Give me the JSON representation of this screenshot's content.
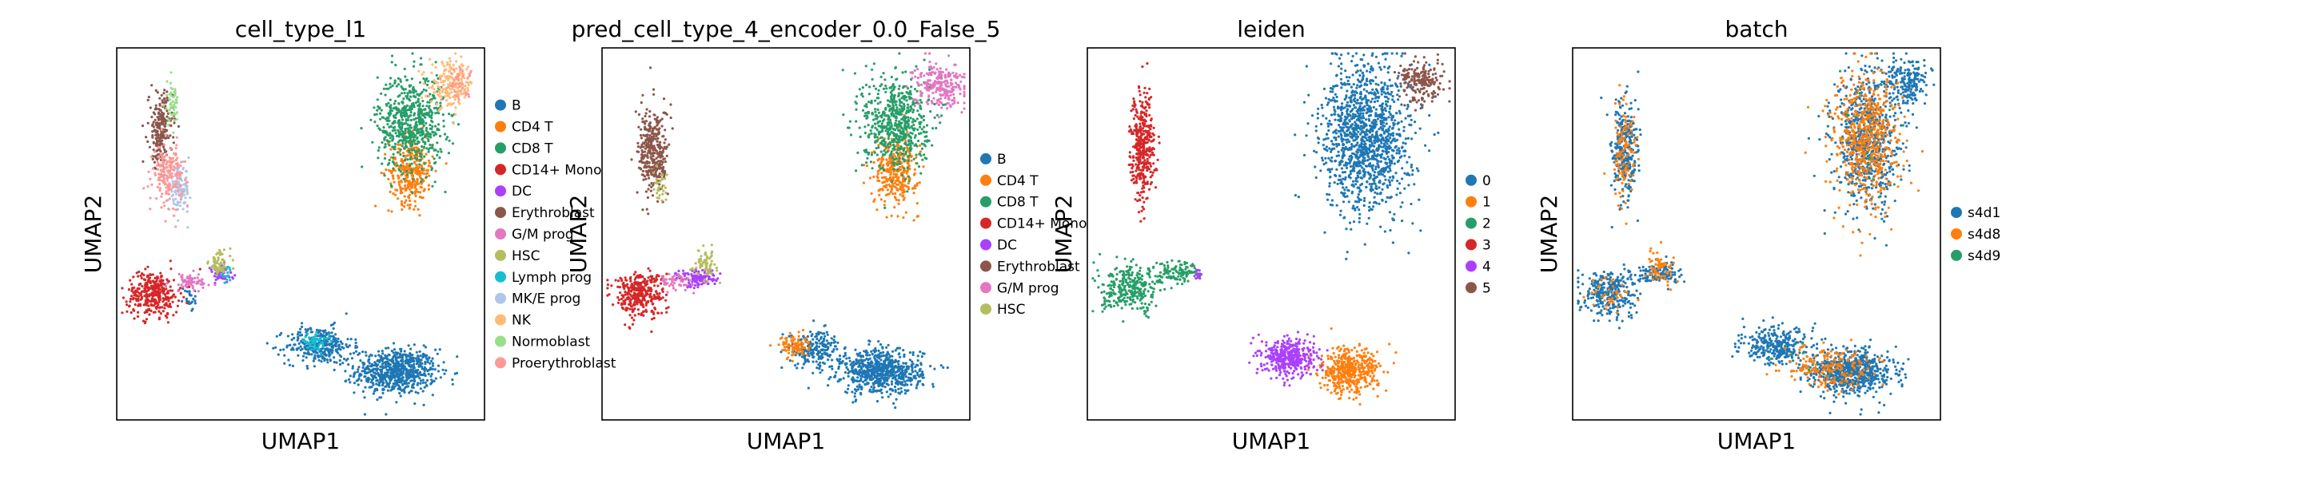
{
  "chart_data": [
    {
      "type": "scatter",
      "title": "cell_type_l1",
      "xlabel": "UMAP1",
      "ylabel": "UMAP2",
      "ticks": "none",
      "legend_position": "right",
      "categories": [
        "B",
        "CD4 T",
        "CD8 T",
        "CD14+ Mono",
        "DC",
        "Erythroblast",
        "G/M prog",
        "HSC",
        "Lymph prog",
        "MK/E prog",
        "NK",
        "Normoblast",
        "Proerythroblast"
      ],
      "colors": [
        "#1f77b4",
        "#ff7f0e",
        "#279e68",
        "#d62728",
        "#aa40fc",
        "#8c564b",
        "#e377c2",
        "#b5bd61",
        "#17becf",
        "#aec7e8",
        "#ffbb78",
        "#98df8a",
        "#ff9896"
      ],
      "clusters": [
        {
          "category": "B",
          "x": 0.76,
          "y": 0.13,
          "sx": 0.055,
          "sy": 0.03,
          "n": 700
        },
        {
          "category": "B",
          "x": 0.55,
          "y": 0.2,
          "sx": 0.045,
          "sy": 0.025,
          "n": 300
        },
        {
          "category": "B",
          "x": 0.2,
          "y": 0.33,
          "sx": 0.01,
          "sy": 0.02,
          "n": 25
        },
        {
          "category": "CD4 T",
          "x": 0.8,
          "y": 0.67,
          "sx": 0.03,
          "sy": 0.045,
          "n": 320
        },
        {
          "category": "CD8 T",
          "x": 0.8,
          "y": 0.8,
          "sx": 0.045,
          "sy": 0.065,
          "n": 650
        },
        {
          "category": "CD14+ Mono",
          "x": 0.1,
          "y": 0.34,
          "sx": 0.035,
          "sy": 0.03,
          "n": 340
        },
        {
          "category": "DC",
          "x": 0.28,
          "y": 0.39,
          "sx": 0.018,
          "sy": 0.012,
          "n": 60
        },
        {
          "category": "Erythroblast",
          "x": 0.12,
          "y": 0.78,
          "sx": 0.016,
          "sy": 0.05,
          "n": 220
        },
        {
          "category": "G/M prog",
          "x": 0.2,
          "y": 0.37,
          "sx": 0.03,
          "sy": 0.012,
          "n": 70
        },
        {
          "category": "HSC",
          "x": 0.28,
          "y": 0.42,
          "sx": 0.015,
          "sy": 0.018,
          "n": 70
        },
        {
          "category": "Lymph prog",
          "x": 0.54,
          "y": 0.21,
          "sx": 0.018,
          "sy": 0.01,
          "n": 60
        },
        {
          "category": "Lymph prog",
          "x": 0.3,
          "y": 0.39,
          "sx": 0.008,
          "sy": 0.008,
          "n": 15
        },
        {
          "category": "MK/E prog",
          "x": 0.17,
          "y": 0.62,
          "sx": 0.014,
          "sy": 0.03,
          "n": 120
        },
        {
          "category": "NK",
          "x": 0.91,
          "y": 0.9,
          "sx": 0.03,
          "sy": 0.03,
          "n": 200
        },
        {
          "category": "Normoblast",
          "x": 0.15,
          "y": 0.85,
          "sx": 0.01,
          "sy": 0.03,
          "n": 50
        },
        {
          "category": "Proerythroblast",
          "x": 0.14,
          "y": 0.66,
          "sx": 0.02,
          "sy": 0.04,
          "n": 180
        },
        {
          "category": "Proerythroblast",
          "x": 0.93,
          "y": 0.91,
          "sx": 0.02,
          "sy": 0.02,
          "n": 40
        }
      ]
    },
    {
      "type": "scatter",
      "title": "pred_cell_type_4_encoder_0.0_False_5",
      "xlabel": "UMAP1",
      "ylabel": "UMAP2",
      "ticks": "none",
      "legend_position": "right",
      "categories": [
        "B",
        "CD4 T",
        "CD8 T",
        "CD14+ Mono",
        "DC",
        "Erythroblast",
        "G/M prog",
        "HSC"
      ],
      "colors": [
        "#1f77b4",
        "#ff7f0e",
        "#279e68",
        "#d62728",
        "#aa40fc",
        "#8c564b",
        "#e377c2",
        "#b5bd61"
      ],
      "clusters": [
        {
          "category": "B",
          "x": 0.76,
          "y": 0.13,
          "sx": 0.055,
          "sy": 0.03,
          "n": 700
        },
        {
          "category": "B",
          "x": 0.58,
          "y": 0.19,
          "sx": 0.035,
          "sy": 0.025,
          "n": 200
        },
        {
          "category": "CD4 T",
          "x": 0.8,
          "y": 0.67,
          "sx": 0.03,
          "sy": 0.045,
          "n": 330
        },
        {
          "category": "CD4 T",
          "x": 0.52,
          "y": 0.2,
          "sx": 0.02,
          "sy": 0.015,
          "n": 90
        },
        {
          "category": "CD8 T",
          "x": 0.8,
          "y": 0.8,
          "sx": 0.045,
          "sy": 0.065,
          "n": 620
        },
        {
          "category": "CD14+ Mono",
          "x": 0.1,
          "y": 0.34,
          "sx": 0.035,
          "sy": 0.03,
          "n": 340
        },
        {
          "category": "DC",
          "x": 0.26,
          "y": 0.38,
          "sx": 0.03,
          "sy": 0.012,
          "n": 120
        },
        {
          "category": "Erythroblast",
          "x": 0.14,
          "y": 0.72,
          "sx": 0.02,
          "sy": 0.06,
          "n": 350
        },
        {
          "category": "G/M prog",
          "x": 0.2,
          "y": 0.37,
          "sx": 0.025,
          "sy": 0.012,
          "n": 50
        },
        {
          "category": "G/M prog",
          "x": 0.92,
          "y": 0.9,
          "sx": 0.035,
          "sy": 0.03,
          "n": 240
        },
        {
          "category": "HSC",
          "x": 0.28,
          "y": 0.42,
          "sx": 0.015,
          "sy": 0.018,
          "n": 70
        },
        {
          "category": "HSC",
          "x": 0.16,
          "y": 0.62,
          "sx": 0.01,
          "sy": 0.02,
          "n": 30
        }
      ]
    },
    {
      "type": "scatter",
      "title": "leiden",
      "xlabel": "UMAP1",
      "ylabel": "UMAP2",
      "ticks": "none",
      "legend_position": "right",
      "categories": [
        "0",
        "1",
        "2",
        "3",
        "4",
        "5"
      ],
      "colors": [
        "#1f77b4",
        "#ff7f0e",
        "#279e68",
        "#d62728",
        "#aa40fc",
        "#8c564b"
      ],
      "clusters": [
        {
          "category": "0",
          "x": 0.76,
          "y": 0.76,
          "sx": 0.06,
          "sy": 0.1,
          "n": 1300
        },
        {
          "category": "1",
          "x": 0.71,
          "y": 0.13,
          "sx": 0.04,
          "sy": 0.03,
          "n": 450
        },
        {
          "category": "2",
          "x": 0.12,
          "y": 0.35,
          "sx": 0.04,
          "sy": 0.03,
          "n": 300
        },
        {
          "category": "2",
          "x": 0.24,
          "y": 0.4,
          "sx": 0.035,
          "sy": 0.015,
          "n": 120
        },
        {
          "category": "3",
          "x": 0.15,
          "y": 0.73,
          "sx": 0.016,
          "sy": 0.07,
          "n": 380
        },
        {
          "category": "4",
          "x": 0.55,
          "y": 0.17,
          "sx": 0.035,
          "sy": 0.025,
          "n": 400
        },
        {
          "category": "4",
          "x": 0.3,
          "y": 0.39,
          "sx": 0.006,
          "sy": 0.008,
          "n": 15
        },
        {
          "category": "5",
          "x": 0.91,
          "y": 0.91,
          "sx": 0.03,
          "sy": 0.028,
          "n": 200
        }
      ]
    },
    {
      "type": "scatter",
      "title": "batch",
      "xlabel": "UMAP1",
      "ylabel": "UMAP2",
      "ticks": "none",
      "legend_position": "right",
      "categories": [
        "s4d1",
        "s4d8",
        "s4d9"
      ],
      "colors": [
        "#1f77b4",
        "#ff7f0e",
        "#279e68"
      ],
      "clusters": [
        {
          "category": "s4d1",
          "x": 0.76,
          "y": 0.13,
          "sx": 0.055,
          "sy": 0.03,
          "n": 650
        },
        {
          "category": "s4d1",
          "x": 0.55,
          "y": 0.2,
          "sx": 0.045,
          "sy": 0.025,
          "n": 300
        },
        {
          "category": "s4d1",
          "x": 0.8,
          "y": 0.75,
          "sx": 0.045,
          "sy": 0.09,
          "n": 700
        },
        {
          "category": "s4d1",
          "x": 0.91,
          "y": 0.91,
          "sx": 0.03,
          "sy": 0.03,
          "n": 200
        },
        {
          "category": "s4d1",
          "x": 0.1,
          "y": 0.34,
          "sx": 0.035,
          "sy": 0.03,
          "n": 300
        },
        {
          "category": "s4d1",
          "x": 0.23,
          "y": 0.39,
          "sx": 0.035,
          "sy": 0.015,
          "n": 120
        },
        {
          "category": "s4d1",
          "x": 0.14,
          "y": 0.72,
          "sx": 0.018,
          "sy": 0.07,
          "n": 300
        },
        {
          "category": "s4d8",
          "x": 0.8,
          "y": 0.75,
          "sx": 0.045,
          "sy": 0.09,
          "n": 600
        },
        {
          "category": "s4d8",
          "x": 0.7,
          "y": 0.14,
          "sx": 0.06,
          "sy": 0.03,
          "n": 200
        },
        {
          "category": "s4d8",
          "x": 0.14,
          "y": 0.72,
          "sx": 0.018,
          "sy": 0.07,
          "n": 120
        },
        {
          "category": "s4d8",
          "x": 0.24,
          "y": 0.41,
          "sx": 0.02,
          "sy": 0.02,
          "n": 70
        },
        {
          "category": "s4d8",
          "x": 0.1,
          "y": 0.34,
          "sx": 0.03,
          "sy": 0.025,
          "n": 40
        },
        {
          "category": "s4d9",
          "x": 0.8,
          "y": 0.76,
          "sx": 0.045,
          "sy": 0.09,
          "n": 15
        },
        {
          "category": "s4d9",
          "x": 0.6,
          "y": 0.17,
          "sx": 0.06,
          "sy": 0.03,
          "n": 8
        }
      ]
    }
  ]
}
